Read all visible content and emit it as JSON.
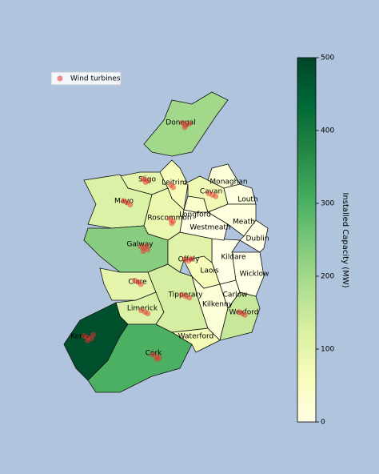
{
  "chart_data": {
    "type": "choropleth",
    "colorbar_label": "Installed Capacity (MW)",
    "colormap": [
      "#ffffe5",
      "#f7fcb9",
      "#d9f0a3",
      "#addd8e",
      "#78c679",
      "#41ab5d",
      "#238443",
      "#006837",
      "#004529"
    ],
    "clim": [
      0,
      500
    ],
    "cticks": [
      0,
      100,
      200,
      300,
      400,
      500
    ],
    "legend": "upper left",
    "regions": [
      {
        "name": "Donegal",
        "value": 200
      },
      {
        "name": "Sligo",
        "value": 100
      },
      {
        "name": "Leitrim",
        "value": 60
      },
      {
        "name": "Mayo",
        "value": 120
      },
      {
        "name": "Roscommon",
        "value": 90
      },
      {
        "name": "Galway",
        "value": 230
      },
      {
        "name": "Clare",
        "value": 100
      },
      {
        "name": "Limerick",
        "value": 120
      },
      {
        "name": "Kerry",
        "value": 480
      },
      {
        "name": "Cork",
        "value": 300
      },
      {
        "name": "Waterford",
        "value": 70
      },
      {
        "name": "Tipperary",
        "value": 130
      },
      {
        "name": "Kilkenny",
        "value": 20
      },
      {
        "name": "Wexford",
        "value": 150
      },
      {
        "name": "Carlow",
        "value": 0
      },
      {
        "name": "Wicklow",
        "value": 0
      },
      {
        "name": "Kildare",
        "value": 0
      },
      {
        "name": "Laois",
        "value": 60
      },
      {
        "name": "Offaly",
        "value": 110
      },
      {
        "name": "Westmeath",
        "value": 0
      },
      {
        "name": "Longford",
        "value": 40
      },
      {
        "name": "Cavan",
        "value": 80
      },
      {
        "name": "Monaghan",
        "value": 20
      },
      {
        "name": "Louth",
        "value": 10
      },
      {
        "name": "Meath",
        "value": 10
      },
      {
        "name": "Dublin",
        "value": 0
      }
    ],
    "turbines": {
      "name": "Wind turbines",
      "color": "#e8312f",
      "lon": [
        -7.85,
        -7.78,
        -7.7,
        -7.8,
        -8.7,
        -8.6,
        -8.65,
        -8.1,
        -8.05,
        -9.12,
        -9.05,
        -8.98,
        -8.12,
        -8.05,
        -8.08,
        -8.75,
        -8.68,
        -8.6,
        -8.7,
        -8.62,
        -7.28,
        -7.2,
        -7.13,
        -7.8,
        -7.72,
        -7.66,
        -8.88,
        -8.8,
        -8.75,
        -8.74,
        -8.66,
        -8.6,
        -7.86,
        -7.78,
        -7.7,
        -9.98,
        -9.9,
        -9.82,
        -9.9,
        -9.78,
        -8.5,
        -8.42,
        -8.35,
        -8.4,
        -6.62,
        -6.56,
        -6.5
      ],
      "lat": [
        54.99,
        54.96,
        54.98,
        54.93,
        54.24,
        54.22,
        54.2,
        54.16,
        54.13,
        53.95,
        53.93,
        53.9,
        53.71,
        53.68,
        53.65,
        53.34,
        53.32,
        53.3,
        53.28,
        53.35,
        54.05,
        54.03,
        54.01,
        53.17,
        53.15,
        53.18,
        52.89,
        52.87,
        52.84,
        52.49,
        52.47,
        52.45,
        52.7,
        52.68,
        52.66,
        52.15,
        52.13,
        52.12,
        52.09,
        52.17,
        51.9,
        51.88,
        51.86,
        51.84,
        52.47,
        52.45,
        52.43
      ]
    }
  }
}
